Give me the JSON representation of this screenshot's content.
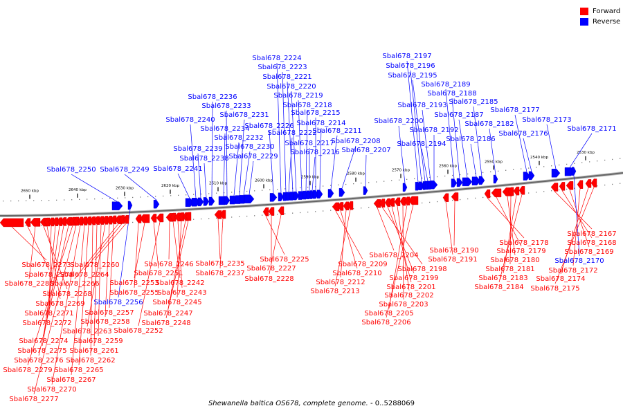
{
  "legend": {
    "forward_label": "Forward",
    "reverse_label": "Reverse",
    "forward_color": "#ff0000",
    "reverse_color": "#0000ff"
  },
  "caption": {
    "organism": "Shewanella baltica OS678, complete genome.",
    "range": " - 0..5288069"
  },
  "ruler": {
    "ticks": [
      "2650 kbp",
      "2640 kbp",
      "2630 kbp",
      "2620 kbp",
      "2610 kbp",
      "2600 kbp",
      "2590 kbp",
      "2580 kbp",
      "2570 kbp",
      "2560 kbp",
      "2550 kbp",
      "2540 kbp",
      "2530 kbp"
    ]
  },
  "genes": [
    {
      "label": "Sbal678_2250",
      "strand": "reverse"
    },
    {
      "label": "Sbal678_2249",
      "strand": "reverse"
    },
    {
      "label": "Sbal678_2241",
      "strand": "reverse"
    },
    {
      "label": "Sbal678_2240",
      "strand": "reverse"
    },
    {
      "label": "Sbal678_2239",
      "strand": "reverse"
    },
    {
      "label": "Sbal678_2238",
      "strand": "reverse"
    },
    {
      "label": "Sbal678_2236",
      "strand": "reverse"
    },
    {
      "label": "Sbal678_2234",
      "strand": "reverse"
    },
    {
      "label": "Sbal678_2233",
      "strand": "reverse"
    },
    {
      "label": "Sbal678_2232",
      "strand": "reverse"
    },
    {
      "label": "Sbal678_2231",
      "strand": "reverse"
    },
    {
      "label": "Sbal678_2230",
      "strand": "reverse"
    },
    {
      "label": "Sbal678_2229",
      "strand": "reverse"
    },
    {
      "label": "Sbal678_2226",
      "strand": "reverse"
    },
    {
      "label": "Sbal678_2224",
      "strand": "reverse"
    },
    {
      "label": "Sbal678_2223",
      "strand": "reverse"
    },
    {
      "label": "Sbal678_2222",
      "strand": "reverse"
    },
    {
      "label": "Sbal678_2221",
      "strand": "reverse"
    },
    {
      "label": "Sbal678_2220",
      "strand": "reverse"
    },
    {
      "label": "Sbal678_2219",
      "strand": "reverse"
    },
    {
      "label": "Sbal678_2218",
      "strand": "reverse"
    },
    {
      "label": "Sbal678_2217",
      "strand": "reverse"
    },
    {
      "label": "Sbal678_2216",
      "strand": "reverse"
    },
    {
      "label": "Sbal678_2215",
      "strand": "reverse"
    },
    {
      "label": "Sbal678_2214",
      "strand": "reverse"
    },
    {
      "label": "Sbal678_2211",
      "strand": "reverse"
    },
    {
      "label": "Sbal678_2208",
      "strand": "reverse"
    },
    {
      "label": "Sbal678_2207",
      "strand": "reverse"
    },
    {
      "label": "Sbal678_2200",
      "strand": "reverse"
    },
    {
      "label": "Sbal678_2197",
      "strand": "reverse"
    },
    {
      "label": "Sbal678_2196",
      "strand": "reverse"
    },
    {
      "label": "Sbal678_2195",
      "strand": "reverse"
    },
    {
      "label": "Sbal678_2194",
      "strand": "reverse"
    },
    {
      "label": "Sbal678_2193",
      "strand": "reverse"
    },
    {
      "label": "Sbal678_2192",
      "strand": "reverse"
    },
    {
      "label": "Sbal678_2189",
      "strand": "reverse"
    },
    {
      "label": "Sbal678_2188",
      "strand": "reverse"
    },
    {
      "label": "Sbal678_2187",
      "strand": "reverse"
    },
    {
      "label": "Sbal678_2186",
      "strand": "reverse"
    },
    {
      "label": "Sbal678_2185",
      "strand": "reverse"
    },
    {
      "label": "Sbal678_2182",
      "strand": "reverse"
    },
    {
      "label": "Sbal678_2177",
      "strand": "reverse"
    },
    {
      "label": "Sbal678_2176",
      "strand": "reverse"
    },
    {
      "label": "Sbal678_2173",
      "strand": "reverse"
    },
    {
      "label": "Sbal678_2171",
      "strand": "reverse"
    },
    {
      "label": "Sbal678_2273",
      "strand": "forward"
    },
    {
      "label": "Sbal678_2278",
      "strand": "forward"
    },
    {
      "label": "Sbal678_2280",
      "strand": "forward"
    },
    {
      "label": "Sbal678_2268",
      "strand": "forward"
    },
    {
      "label": "Sbal678_2269",
      "strand": "forward"
    },
    {
      "label": "Sbal678_2271",
      "strand": "forward"
    },
    {
      "label": "Sbal678_2272",
      "strand": "forward"
    },
    {
      "label": "Sbal678_2274",
      "strand": "forward"
    },
    {
      "label": "Sbal678_2275",
      "strand": "forward"
    },
    {
      "label": "Sbal678_2276",
      "strand": "forward"
    },
    {
      "label": "Sbal678_2279",
      "strand": "forward"
    },
    {
      "label": "Sbal678_2277",
      "strand": "forward"
    },
    {
      "label": "Sbal678_2270",
      "strand": "forward"
    },
    {
      "label": "Sbal678_2267",
      "strand": "forward"
    },
    {
      "label": "Sbal678_2265",
      "strand": "forward"
    },
    {
      "label": "Sbal678_2262",
      "strand": "forward"
    },
    {
      "label": "Sbal678_2261",
      "strand": "forward"
    },
    {
      "label": "Sbal678_2259",
      "strand": "forward"
    },
    {
      "label": "Sbal678_2263",
      "strand": "forward"
    },
    {
      "label": "Sbal678_2258",
      "strand": "forward"
    },
    {
      "label": "Sbal678_2257",
      "strand": "forward"
    },
    {
      "label": "Sbal678_2266",
      "strand": "forward"
    },
    {
      "label": "Sbal678_2264",
      "strand": "forward"
    },
    {
      "label": "Sbal678_2260",
      "strand": "forward"
    },
    {
      "label": "Sbal678_2256",
      "strand": "reverse"
    },
    {
      "label": "Sbal678_2255",
      "strand": "forward"
    },
    {
      "label": "Sbal678_2253",
      "strand": "forward"
    },
    {
      "label": "Sbal678_2251",
      "strand": "forward"
    },
    {
      "label": "Sbal678_2252",
      "strand": "forward"
    },
    {
      "label": "Sbal678_2246",
      "strand": "forward"
    },
    {
      "label": "Sbal678_2242",
      "strand": "forward"
    },
    {
      "label": "Sbal678_2243",
      "strand": "forward"
    },
    {
      "label": "Sbal678_2245",
      "strand": "forward"
    },
    {
      "label": "Sbal678_2247",
      "strand": "forward"
    },
    {
      "label": "Sbal678_2248",
      "strand": "forward"
    },
    {
      "label": "Sbal678_2235",
      "strand": "forward"
    },
    {
      "label": "Sbal678_2237",
      "strand": "forward"
    },
    {
      "label": "Sbal678_2225",
      "strand": "forward"
    },
    {
      "label": "Sbal678_2227",
      "strand": "forward"
    },
    {
      "label": "Sbal678_2228",
      "strand": "forward"
    },
    {
      "label": "Sbal678_2209",
      "strand": "forward"
    },
    {
      "label": "Sbal678_2210",
      "strand": "forward"
    },
    {
      "label": "Sbal678_2212",
      "strand": "forward"
    },
    {
      "label": "Sbal678_2213",
      "strand": "forward"
    },
    {
      "label": "Sbal678_2204",
      "strand": "forward"
    },
    {
      "label": "Sbal678_2198",
      "strand": "forward"
    },
    {
      "label": "Sbal678_2199",
      "strand": "forward"
    },
    {
      "label": "Sbal678_2201",
      "strand": "forward"
    },
    {
      "label": "Sbal678_2202",
      "strand": "forward"
    },
    {
      "label": "Sbal678_2203",
      "strand": "forward"
    },
    {
      "label": "Sbal678_2205",
      "strand": "forward"
    },
    {
      "label": "Sbal678_2206",
      "strand": "forward"
    },
    {
      "label": "Sbal678_2190",
      "strand": "forward"
    },
    {
      "label": "Sbal678_2191",
      "strand": "forward"
    },
    {
      "label": "Sbal678_2178",
      "strand": "forward"
    },
    {
      "label": "Sbal678_2179",
      "strand": "forward"
    },
    {
      "label": "Sbal678_2180",
      "strand": "forward"
    },
    {
      "label": "Sbal678_2181",
      "strand": "forward"
    },
    {
      "label": "Sbal678_2183",
      "strand": "forward"
    },
    {
      "label": "Sbal678_2184",
      "strand": "forward"
    },
    {
      "label": "Sbal678_2167",
      "strand": "forward"
    },
    {
      "label": "Sbal678_2168",
      "strand": "forward"
    },
    {
      "label": "Sbal678_2169",
      "strand": "forward"
    },
    {
      "label": "Sbal678_2170",
      "strand": "reverse"
    },
    {
      "label": "Sbal678_2172",
      "strand": "forward"
    },
    {
      "label": "Sbal678_2174",
      "strand": "forward"
    },
    {
      "label": "Sbal678_2175",
      "strand": "forward"
    }
  ]
}
